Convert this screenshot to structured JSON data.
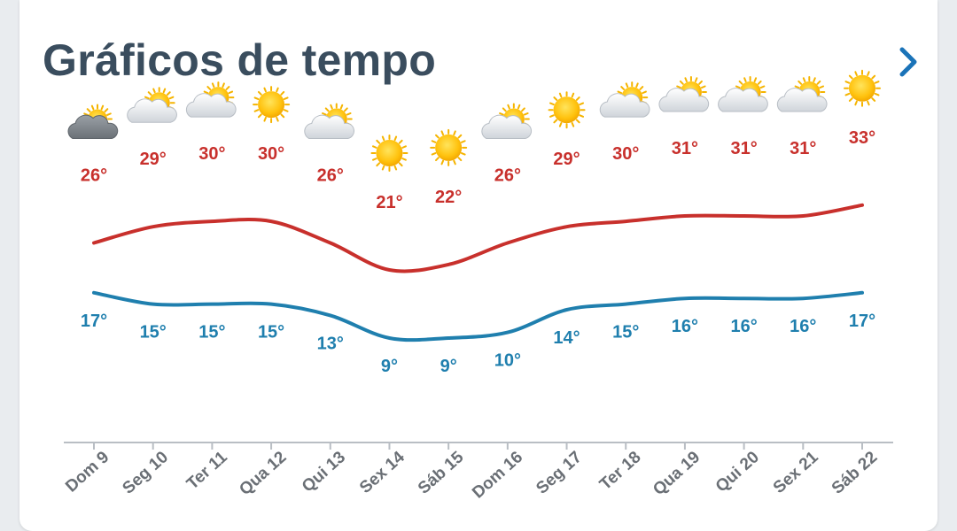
{
  "header": {
    "title": "Gráficos de tempo",
    "next_icon": "chevron-right-icon"
  },
  "colors": {
    "max_line": "#c8302c",
    "min_line": "#1f7fae",
    "title": "#3a4d5e"
  },
  "chart_data": {
    "type": "line",
    "title": "Gráficos de tempo",
    "categories": [
      "Dom 9",
      "Seg 10",
      "Ter 11",
      "Qua 12",
      "Qui 13",
      "Sex 14",
      "Sáb 15",
      "Dom 16",
      "Seg 17",
      "Ter 18",
      "Qua 19",
      "Qui 20",
      "Sex 21",
      "Sáb 22"
    ],
    "series": [
      {
        "values": [
          26,
          29,
          30,
          30,
          26,
          21,
          22,
          26,
          29,
          30,
          31,
          31,
          31,
          33
        ],
        "labels": [
          "26°",
          "29°",
          "30°",
          "30°",
          "26°",
          "21°",
          "22°",
          "26°",
          "29°",
          "30°",
          "31°",
          "31°",
          "31°",
          "33°"
        ]
      },
      {
        "values": [
          17,
          15,
          15,
          15,
          13,
          9,
          9,
          10,
          14,
          15,
          16,
          16,
          16,
          17
        ],
        "labels": [
          "17°",
          "15°",
          "15°",
          "15°",
          "13°",
          "9°",
          "9°",
          "10°",
          "14°",
          "15°",
          "16°",
          "16°",
          "16°",
          "17°"
        ]
      }
    ],
    "conditions": [
      "cloudy",
      "partly-cloudy",
      "partly-cloudy",
      "sunny",
      "partly-cloudy",
      "sunny",
      "sunny",
      "partly-cloudy",
      "sunny",
      "partly-cloudy",
      "partly-cloudy",
      "partly-cloudy",
      "partly-cloudy",
      "sunny"
    ],
    "grid": false
  }
}
